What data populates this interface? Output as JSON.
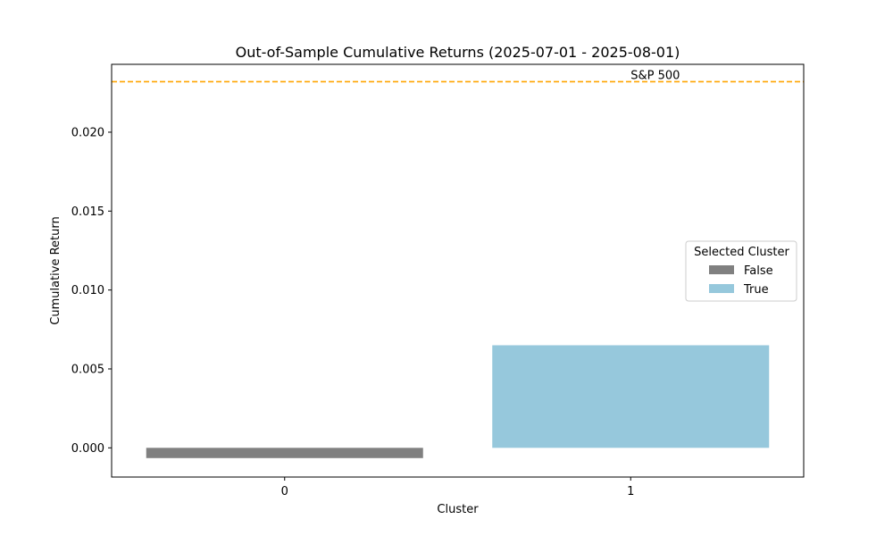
{
  "chart_data": {
    "type": "bar",
    "title": "Out-of-Sample Cumulative Returns (2025-07-01 - 2025-08-01)",
    "xlabel": "Cluster",
    "ylabel": "Cumulative Return",
    "categories": [
      "0",
      "1"
    ],
    "values": [
      -0.00065,
      0.0065
    ],
    "selected": [
      "False",
      "True"
    ],
    "ylim": [
      -0.00185,
      0.0243
    ],
    "yticks": [
      0.0,
      0.005,
      0.01,
      0.015,
      0.02
    ],
    "ytick_labels": [
      "0.000",
      "0.005",
      "0.010",
      "0.015",
      "0.020"
    ],
    "grid": false,
    "reference_line": {
      "label": "S&P 500",
      "value": 0.0232,
      "color": "#ffa500",
      "style": "dashed"
    },
    "legend": {
      "title": "Selected Cluster",
      "placement": "center-right",
      "entries": [
        {
          "label": "False",
          "color": "#808080"
        },
        {
          "label": "True",
          "color": "#96c8dc"
        }
      ]
    }
  }
}
